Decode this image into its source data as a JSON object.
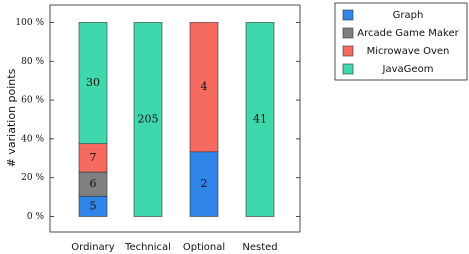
{
  "chart_data": {
    "type": "bar",
    "stacked": "percent",
    "y_label": "# variation points",
    "categories": [
      "Ordinary",
      "Technical",
      "Optional",
      "Nested"
    ],
    "series": [
      {
        "name": "Graph",
        "color": "#2f86e8",
        "values": [
          5,
          null,
          2,
          null
        ]
      },
      {
        "name": "Arcade Game Maker",
        "color": "#808080",
        "values": [
          6,
          null,
          null,
          null
        ]
      },
      {
        "name": "Microwave Oven",
        "color": "#f56b5f",
        "values": [
          7,
          null,
          4,
          null
        ]
      },
      {
        "name": "JavaGeom",
        "color": "#3fd8ad",
        "values": [
          30,
          205,
          null,
          41
        ]
      }
    ],
    "ylim": [
      -8,
      109
    ],
    "yticks": [
      {
        "value": 0,
        "label": "0 %"
      },
      {
        "value": 20,
        "label": "20 %"
      },
      {
        "value": 40,
        "label": "40 %"
      },
      {
        "value": 60,
        "label": "60 %"
      },
      {
        "value": 80,
        "label": "80 %"
      },
      {
        "value": 100,
        "label": "100 %"
      }
    ],
    "legend": "outside-top-right"
  }
}
